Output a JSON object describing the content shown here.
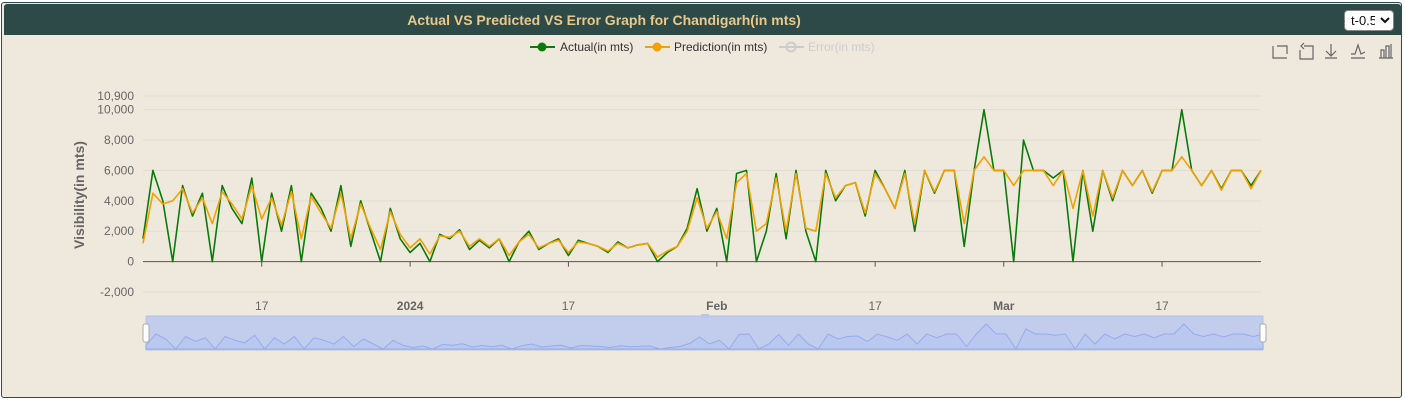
{
  "header": {
    "title": "Actual VS Predicted VS Error Graph for Chandigarh(in mts)",
    "lead_options": [
      "t-0.5"
    ],
    "lead_selected": "t-0.5"
  },
  "toolbox": {
    "icons": [
      "zoom-icon",
      "zoom-reset-icon",
      "download-icon",
      "line-chart-icon",
      "bar-chart-icon"
    ]
  },
  "colors": {
    "actual": "#0a7a0a",
    "prediction": "#f2a100",
    "error_disabled": "#cccccc",
    "grid": "#e2ddd3",
    "axis": "#555555",
    "zoom_fill": "#c4cff0",
    "zoom_line": "#8aa3e8"
  },
  "chart_data": {
    "type": "line",
    "ylabel": "Visibility(in mts)",
    "xlabel": "",
    "y_ticks": [
      "10,900",
      "10,000",
      "8,000",
      "6,000",
      "4,000",
      "2,000",
      "0",
      "-2,000"
    ],
    "ylim": [
      -2000,
      10900
    ],
    "x_ticks": [
      {
        "label": "17",
        "date": "2023-12-17",
        "bold": false
      },
      {
        "label": "2024",
        "date": "2024-01-01",
        "bold": true
      },
      {
        "label": "17",
        "date": "2024-01-17",
        "bold": false
      },
      {
        "label": "Feb",
        "date": "2024-02-01",
        "bold": true
      },
      {
        "label": "17",
        "date": "2024-02-17",
        "bold": false
      },
      {
        "label": "Mar",
        "date": "2024-03-01",
        "bold": true
      },
      {
        "label": "17",
        "date": "2024-03-17",
        "bold": false
      }
    ],
    "x_range": [
      "2023-12-05",
      "2024-03-27"
    ],
    "series": [
      {
        "name": "Actual(in mts)",
        "enabled": true,
        "x": [
          "2023-12-05",
          "2023-12-06",
          "2023-12-07",
          "2023-12-08",
          "2023-12-09",
          "2023-12-10",
          "2023-12-11",
          "2023-12-12",
          "2023-12-13",
          "2023-12-14",
          "2023-12-15",
          "2023-12-16",
          "2023-12-17",
          "2023-12-18",
          "2023-12-19",
          "2023-12-20",
          "2023-12-21",
          "2023-12-22",
          "2023-12-23",
          "2023-12-24",
          "2023-12-25",
          "2023-12-26",
          "2023-12-27",
          "2023-12-28",
          "2023-12-29",
          "2023-12-30",
          "2023-12-31",
          "2024-01-01",
          "2024-01-02",
          "2024-01-03",
          "2024-01-04",
          "2024-01-05",
          "2024-01-06",
          "2024-01-07",
          "2024-01-08",
          "2024-01-09",
          "2024-01-10",
          "2024-01-11",
          "2024-01-12",
          "2024-01-13",
          "2024-01-14",
          "2024-01-15",
          "2024-01-16",
          "2024-01-17",
          "2024-01-18",
          "2024-01-19",
          "2024-01-20",
          "2024-01-21",
          "2024-01-22",
          "2024-01-23",
          "2024-01-24",
          "2024-01-25",
          "2024-01-26",
          "2024-01-27",
          "2024-01-28",
          "2024-01-29",
          "2024-01-30",
          "2024-01-31",
          "2024-02-01",
          "2024-02-02",
          "2024-02-03",
          "2024-02-04",
          "2024-02-05",
          "2024-02-06",
          "2024-02-07",
          "2024-02-08",
          "2024-02-09",
          "2024-02-10",
          "2024-02-11",
          "2024-02-12",
          "2024-02-13",
          "2024-02-14",
          "2024-02-15",
          "2024-02-16",
          "2024-02-17",
          "2024-02-18",
          "2024-02-19",
          "2024-02-20",
          "2024-02-21",
          "2024-02-22",
          "2024-02-23",
          "2024-02-24",
          "2024-02-25",
          "2024-02-26",
          "2024-02-27",
          "2024-02-28",
          "2024-02-29",
          "2024-03-01",
          "2024-03-02",
          "2024-03-03",
          "2024-03-04",
          "2024-03-05",
          "2024-03-06",
          "2024-03-07",
          "2024-03-08",
          "2024-03-09",
          "2024-03-10",
          "2024-03-11",
          "2024-03-12",
          "2024-03-13",
          "2024-03-14",
          "2024-03-15",
          "2024-03-16",
          "2024-03-17",
          "2024-03-18",
          "2024-03-19",
          "2024-03-20",
          "2024-03-21",
          "2024-03-22",
          "2024-03-23",
          "2024-03-24",
          "2024-03-25",
          "2024-03-26",
          "2024-03-27"
        ],
        "values": [
          1500,
          6000,
          4000,
          0,
          5000,
          3000,
          4500,
          0,
          5000,
          3500,
          2500,
          5500,
          0,
          4500,
          2000,
          5000,
          0,
          4500,
          3500,
          2000,
          5000,
          1000,
          4000,
          2000,
          0,
          3500,
          1500,
          600,
          1200,
          0,
          1800,
          1500,
          2100,
          800,
          1400,
          900,
          1500,
          0,
          1300,
          2000,
          800,
          1200,
          1500,
          400,
          1400,
          1200,
          1000,
          600,
          1300,
          900,
          1100,
          1200,
          0,
          600,
          1000,
          2200,
          4800,
          2000,
          3500,
          0,
          5800,
          6000,
          0,
          2000,
          5800,
          1500,
          6000,
          2000,
          0,
          6000,
          4000,
          5000,
          5200,
          3000,
          6000,
          4800,
          3500,
          6000,
          2000,
          6000,
          4500,
          6000,
          6000,
          1000,
          6000,
          10000,
          6000,
          6000,
          0,
          8000,
          6000,
          6000,
          5500,
          6000,
          0,
          6000,
          2000,
          6000,
          4000,
          6000,
          5000,
          6000,
          4500,
          6000,
          6000,
          10000,
          6000,
          5000,
          6000,
          4800,
          6000,
          6000,
          5000,
          6000
        ]
      },
      {
        "name": "Prediction(in mts)",
        "enabled": true,
        "x": [
          "2023-12-05",
          "2023-12-06",
          "2023-12-07",
          "2023-12-08",
          "2023-12-09",
          "2023-12-10",
          "2023-12-11",
          "2023-12-12",
          "2023-12-13",
          "2023-12-14",
          "2023-12-15",
          "2023-12-16",
          "2023-12-17",
          "2023-12-18",
          "2023-12-19",
          "2023-12-20",
          "2023-12-21",
          "2023-12-22",
          "2023-12-23",
          "2023-12-24",
          "2023-12-25",
          "2023-12-26",
          "2023-12-27",
          "2023-12-28",
          "2023-12-29",
          "2023-12-30",
          "2023-12-31",
          "2024-01-01",
          "2024-01-02",
          "2024-01-03",
          "2024-01-04",
          "2024-01-05",
          "2024-01-06",
          "2024-01-07",
          "2024-01-08",
          "2024-01-09",
          "2024-01-10",
          "2024-01-11",
          "2024-01-12",
          "2024-01-13",
          "2024-01-14",
          "2024-01-15",
          "2024-01-16",
          "2024-01-17",
          "2024-01-18",
          "2024-01-19",
          "2024-01-20",
          "2024-01-21",
          "2024-01-22",
          "2024-01-23",
          "2024-01-24",
          "2024-01-25",
          "2024-01-26",
          "2024-01-27",
          "2024-01-28",
          "2024-01-29",
          "2024-01-30",
          "2024-01-31",
          "2024-02-01",
          "2024-02-02",
          "2024-02-03",
          "2024-02-04",
          "2024-02-05",
          "2024-02-06",
          "2024-02-07",
          "2024-02-08",
          "2024-02-09",
          "2024-02-10",
          "2024-02-11",
          "2024-02-12",
          "2024-02-13",
          "2024-02-14",
          "2024-02-15",
          "2024-02-16",
          "2024-02-17",
          "2024-02-18",
          "2024-02-19",
          "2024-02-20",
          "2024-02-21",
          "2024-02-22",
          "2024-02-23",
          "2024-02-24",
          "2024-02-25",
          "2024-02-26",
          "2024-02-27",
          "2024-02-28",
          "2024-02-29",
          "2024-03-01",
          "2024-03-02",
          "2024-03-03",
          "2024-03-04",
          "2024-03-05",
          "2024-03-06",
          "2024-03-07",
          "2024-03-08",
          "2024-03-09",
          "2024-03-10",
          "2024-03-11",
          "2024-03-12",
          "2024-03-13",
          "2024-03-14",
          "2024-03-15",
          "2024-03-16",
          "2024-03-17",
          "2024-03-18",
          "2024-03-19",
          "2024-03-20",
          "2024-03-21",
          "2024-03-22",
          "2024-03-23",
          "2024-03-24",
          "2024-03-25",
          "2024-03-26",
          "2024-03-27"
        ],
        "values": [
          1200,
          4500,
          3800,
          4000,
          4800,
          3200,
          4200,
          2500,
          4600,
          3800,
          2800,
          5000,
          2800,
          4200,
          2400,
          4600,
          1500,
          4300,
          3200,
          2200,
          4500,
          1500,
          3800,
          2200,
          800,
          3300,
          1800,
          900,
          1500,
          500,
          1700,
          1600,
          2000,
          1000,
          1500,
          1000,
          1500,
          400,
          1300,
          1800,
          900,
          1200,
          1400,
          600,
          1300,
          1200,
          1000,
          700,
          1200,
          900,
          1100,
          1200,
          300,
          700,
          1000,
          2000,
          4200,
          2200,
          3300,
          1500,
          5200,
          5800,
          2000,
          2500,
          5500,
          2000,
          5800,
          2200,
          2000,
          5800,
          4200,
          5000,
          5200,
          3200,
          5800,
          4800,
          3500,
          5800,
          2500,
          6000,
          4600,
          6000,
          6000,
          2500,
          6000,
          6900,
          6000,
          6000,
          5000,
          6000,
          6000,
          6000,
          5000,
          6000,
          3500,
          6000,
          3000,
          6000,
          4200,
          6000,
          5000,
          6000,
          4600,
          6000,
          6000,
          6900,
          6000,
          5000,
          6000,
          4700,
          6000,
          6000,
          4800,
          6000
        ]
      },
      {
        "name": "Error(in mts)",
        "enabled": false,
        "x": [],
        "values": []
      }
    ],
    "legend_placement": "top-center",
    "grid": true,
    "datazoom": {
      "start": 0,
      "end": 100
    }
  }
}
